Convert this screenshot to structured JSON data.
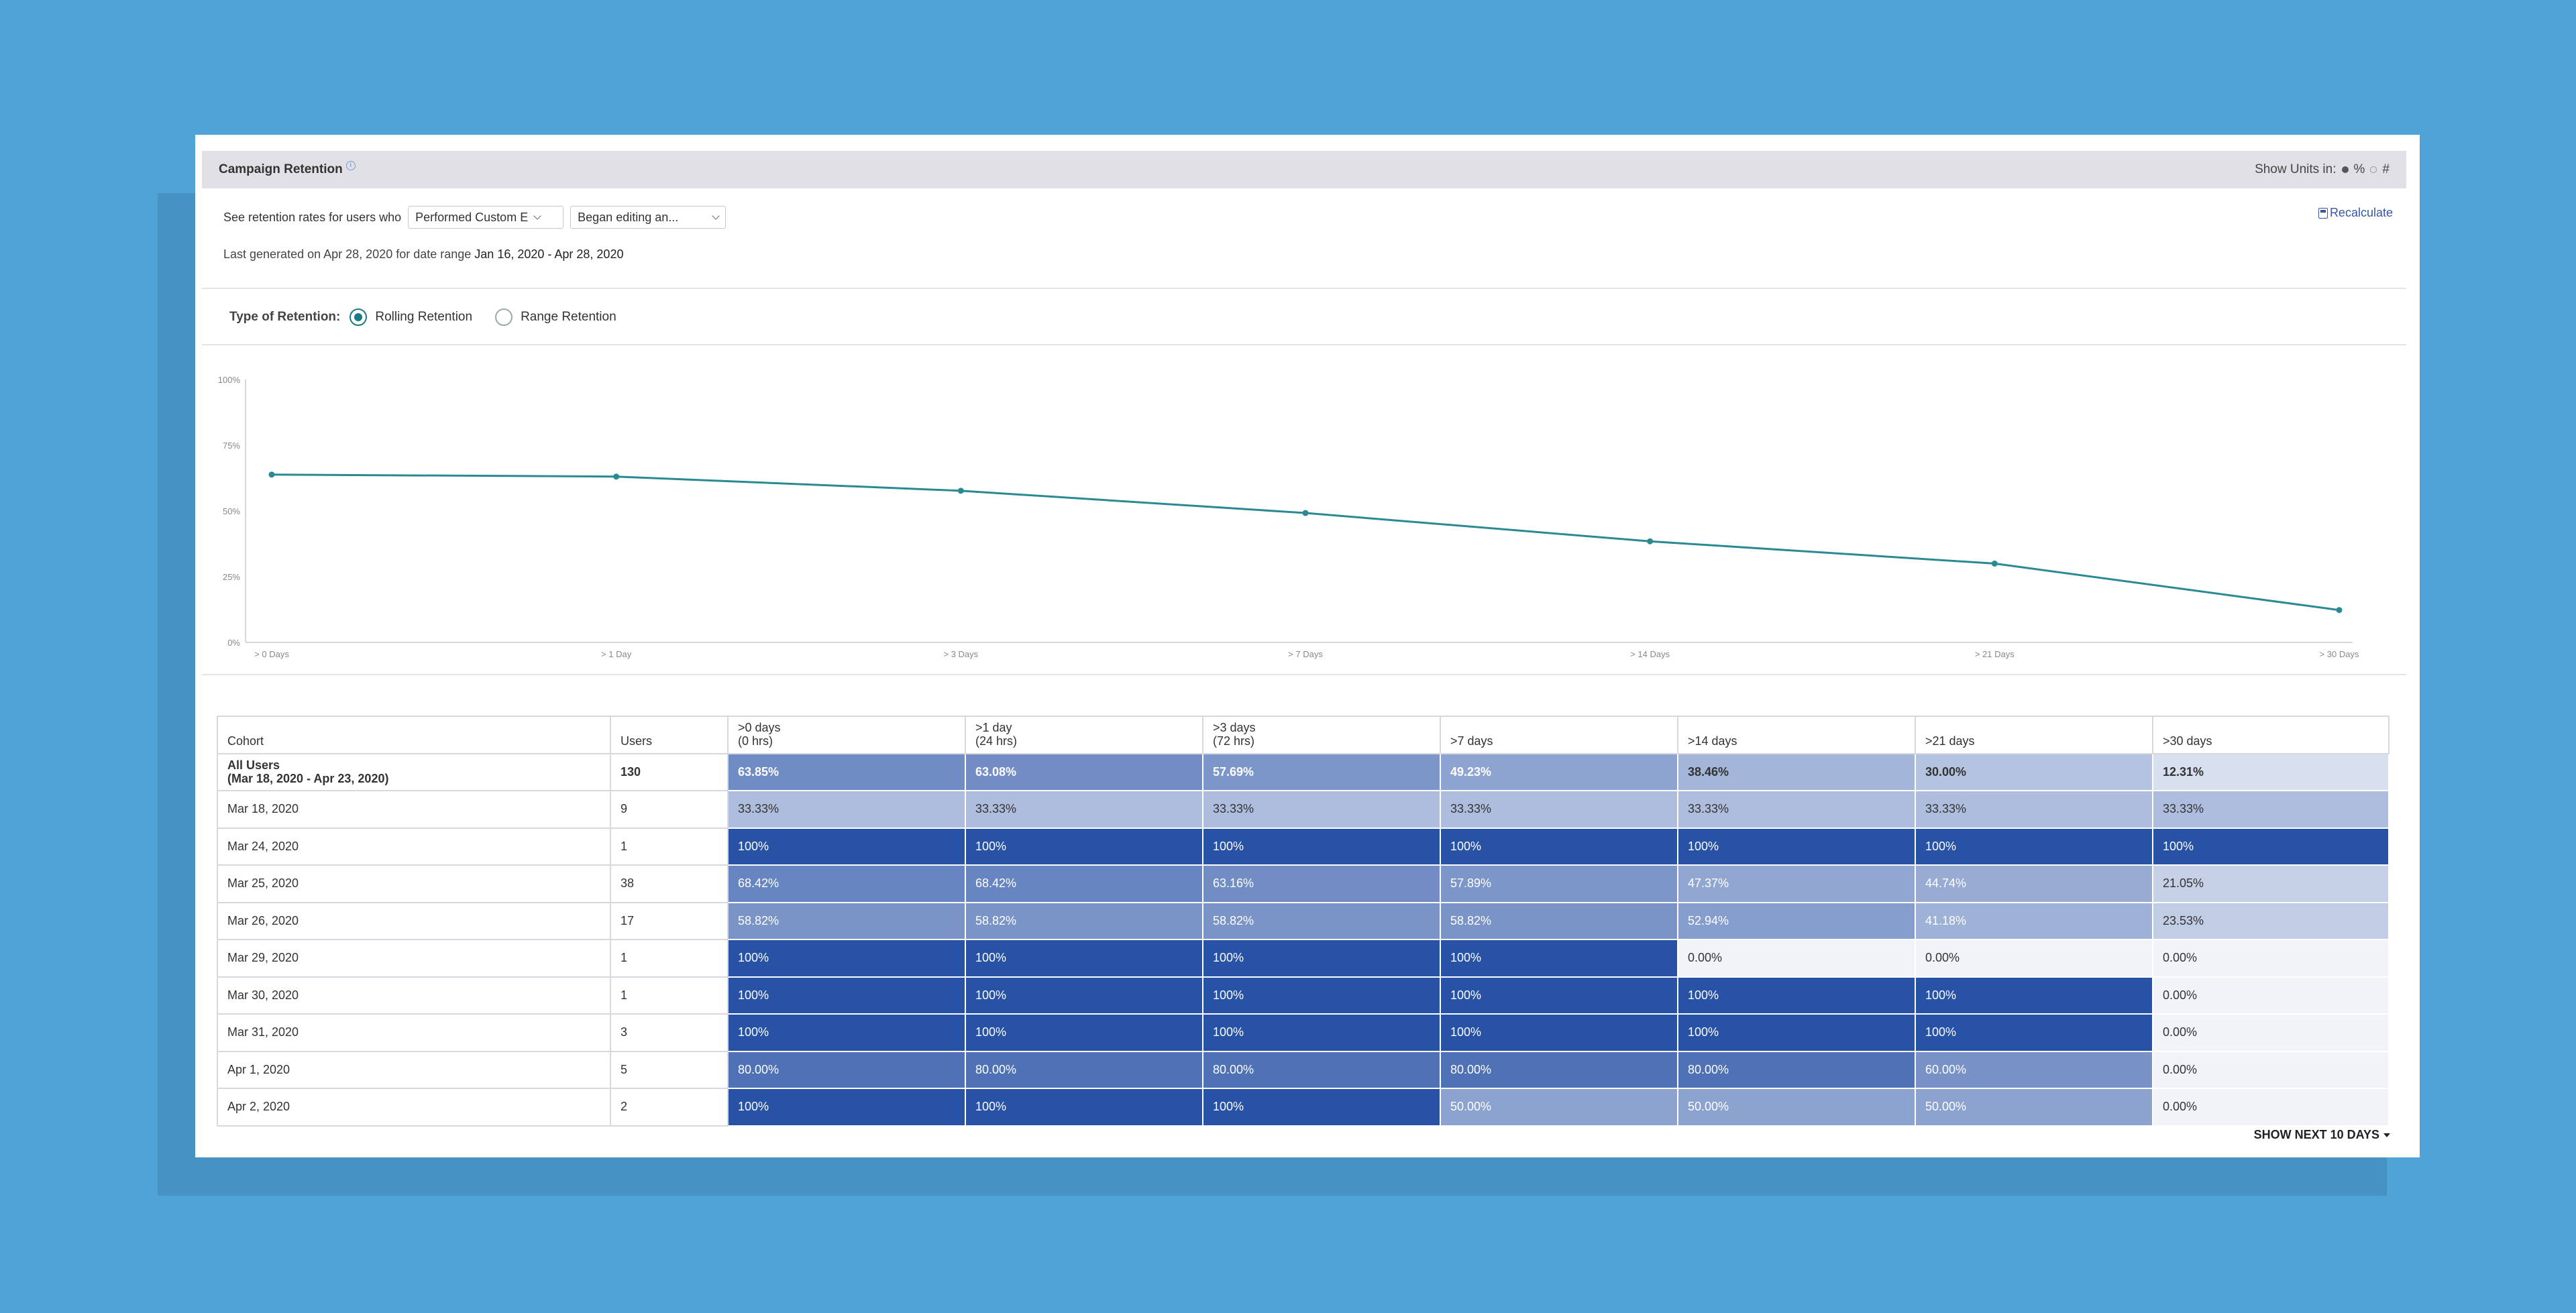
{
  "header": {
    "title": "Campaign Retention",
    "show_units_label": "Show Units in:",
    "unit_percent": "%",
    "unit_count": "#"
  },
  "filters": {
    "prefix": "See retention rates for users who",
    "dropdown1": "Performed Custom E",
    "dropdown2": "Began editing an...",
    "last_generated_prefix": "Last generated on Apr 28, 2020 for date range",
    "date_range": "Jan 16, 2020 - Apr 28, 2020",
    "recalculate": "Recalculate"
  },
  "retention_type": {
    "label": "Type of Retention:",
    "options": [
      "Rolling Retention",
      "Range Retention"
    ],
    "selected": "Rolling Retention"
  },
  "chart_data": {
    "type": "line",
    "categories": [
      "> 0 Days",
      "> 1 Day",
      "> 3 Days",
      "> 7 Days",
      "> 14 Days",
      "> 21 Days",
      "> 30 Days"
    ],
    "series": [
      {
        "values": [
          63.85,
          63.08,
          57.69,
          49.23,
          38.46,
          30.0,
          12.31
        ]
      }
    ],
    "yticks": [
      "0%",
      "25%",
      "50%",
      "75%",
      "100%"
    ],
    "ylim": [
      0,
      100
    ],
    "line_color": "#2a8a92"
  },
  "table": {
    "columns": [
      "Cohort",
      "Users",
      [
        ">0 days",
        "(0 hrs)"
      ],
      [
        ">1 day",
        "(24 hrs)"
      ],
      [
        ">3 days",
        "(72 hrs)"
      ],
      [
        ">7 days"
      ],
      [
        ">14 days"
      ],
      [
        ">21 days"
      ],
      [
        ">30 days"
      ]
    ],
    "rows": [
      {
        "cohort": [
          "All Users",
          "(Mar 18, 2020 - Apr 23, 2020)"
        ],
        "users": "130",
        "values": [
          "63.85%",
          "63.08%",
          "57.69%",
          "49.23%",
          "38.46%",
          "30.00%",
          "12.31%"
        ],
        "levels": [
          63.85,
          63.08,
          57.69,
          49.23,
          38.46,
          30.0,
          12.31
        ]
      },
      {
        "cohort": [
          "Mar 18, 2020"
        ],
        "users": "9",
        "values": [
          "33.33%",
          "33.33%",
          "33.33%",
          "33.33%",
          "33.33%",
          "33.33%",
          "33.33%"
        ],
        "levels": [
          33.33,
          33.33,
          33.33,
          33.33,
          33.33,
          33.33,
          33.33
        ]
      },
      {
        "cohort": [
          "Mar 24, 2020"
        ],
        "users": "1",
        "values": [
          "100%",
          "100%",
          "100%",
          "100%",
          "100%",
          "100%",
          "100%"
        ],
        "levels": [
          100,
          100,
          100,
          100,
          100,
          100,
          100
        ]
      },
      {
        "cohort": [
          "Mar 25, 2020"
        ],
        "users": "38",
        "values": [
          "68.42%",
          "68.42%",
          "63.16%",
          "57.89%",
          "47.37%",
          "44.74%",
          "21.05%"
        ],
        "levels": [
          68.42,
          68.42,
          63.16,
          57.89,
          47.37,
          44.74,
          21.05
        ]
      },
      {
        "cohort": [
          "Mar 26, 2020"
        ],
        "users": "17",
        "values": [
          "58.82%",
          "58.82%",
          "58.82%",
          "58.82%",
          "52.94%",
          "41.18%",
          "23.53%"
        ],
        "levels": [
          58.82,
          58.82,
          58.82,
          58.82,
          52.94,
          41.18,
          23.53
        ]
      },
      {
        "cohort": [
          "Mar 29, 2020"
        ],
        "users": "1",
        "values": [
          "100%",
          "100%",
          "100%",
          "100%",
          "0.00%",
          "0.00%",
          "0.00%"
        ],
        "levels": [
          100,
          100,
          100,
          100,
          0,
          0,
          0
        ]
      },
      {
        "cohort": [
          "Mar 30, 2020"
        ],
        "users": "1",
        "values": [
          "100%",
          "100%",
          "100%",
          "100%",
          "100%",
          "100%",
          "0.00%"
        ],
        "levels": [
          100,
          100,
          100,
          100,
          100,
          100,
          0
        ]
      },
      {
        "cohort": [
          "Mar 31, 2020"
        ],
        "users": "3",
        "values": [
          "100%",
          "100%",
          "100%",
          "100%",
          "100%",
          "100%",
          "0.00%"
        ],
        "levels": [
          100,
          100,
          100,
          100,
          100,
          100,
          0
        ]
      },
      {
        "cohort": [
          "Apr 1, 2020"
        ],
        "users": "5",
        "values": [
          "80.00%",
          "80.00%",
          "80.00%",
          "80.00%",
          "80.00%",
          "60.00%",
          "0.00%"
        ],
        "levels": [
          80,
          80,
          80,
          80,
          80,
          60,
          0
        ]
      },
      {
        "cohort": [
          "Apr 2, 2020"
        ],
        "users": "2",
        "values": [
          "100%",
          "100%",
          "100%",
          "50.00%",
          "50.00%",
          "50.00%",
          "0.00%"
        ],
        "levels": [
          100,
          100,
          100,
          50,
          50,
          50,
          0
        ]
      }
    ]
  },
  "show_next": "SHOW NEXT 10 DAYS",
  "colors": {
    "background": "#4fa3d7",
    "cell_high": "#2752a6",
    "cell_low": "#f1f3f8",
    "accent": "#1c7a85",
    "link": "#3b55a6"
  }
}
